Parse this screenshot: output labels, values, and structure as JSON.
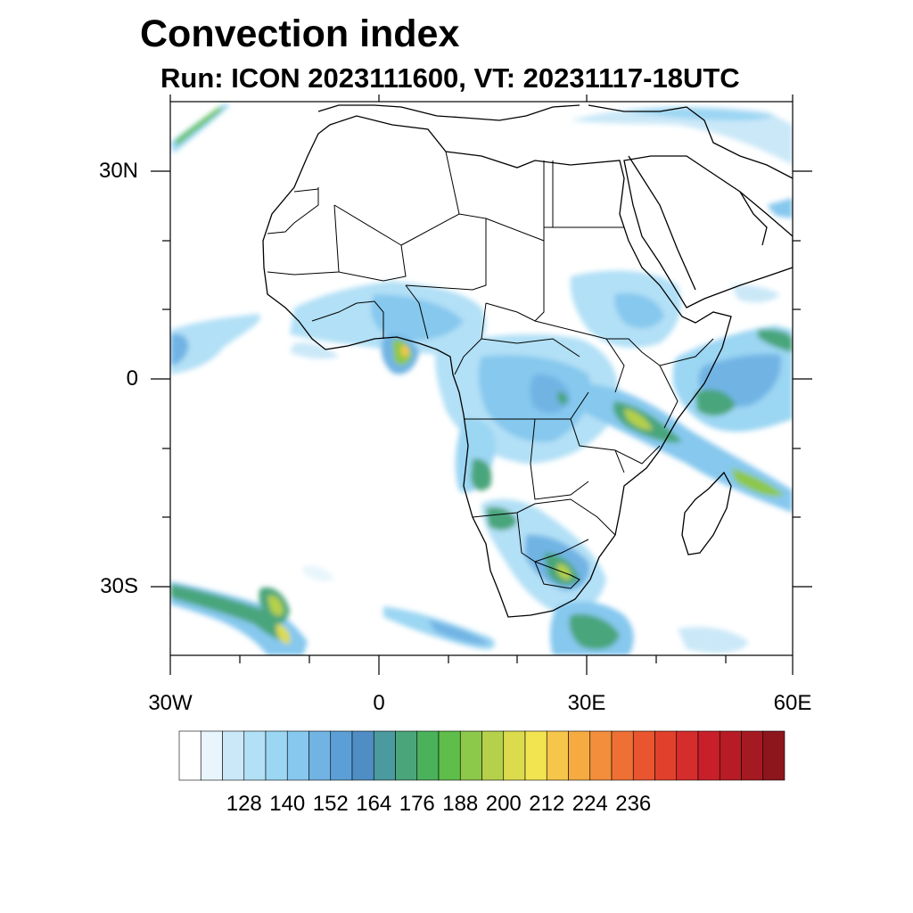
{
  "title": "Convection index",
  "subtitle": "Run: ICON 2023111600,  VT: 20231117-18UTC",
  "map": {
    "lat_labels": [
      "30N",
      "0",
      "30S"
    ],
    "lon_labels": [
      "30W",
      "0",
      "30E",
      "60E"
    ],
    "extent": {
      "lon": [
        -30,
        60
      ],
      "lat": [
        -40,
        40
      ]
    }
  },
  "colorbar": {
    "labels": [
      "128",
      "140",
      "152",
      "164",
      "176",
      "188",
      "200",
      "212",
      "224",
      "236"
    ],
    "colors": [
      "#ffffff",
      "#e8f5fc",
      "#cbe8f8",
      "#b2e0f6",
      "#9bd6f3",
      "#86c8ee",
      "#71b4e4",
      "#5c9fd6",
      "#4f8ec4",
      "#4b9aa0",
      "#4aa57b",
      "#49b25a",
      "#5fbe4a",
      "#8cc84a",
      "#b5d04a",
      "#dcdb4e",
      "#f2e450",
      "#f6c64a",
      "#f6aa42",
      "#f28e3c",
      "#ee7034",
      "#e9552e",
      "#e0402c",
      "#d52c2c",
      "#c8202a",
      "#b71c26",
      "#a51a22",
      "#8c161c"
    ]
  }
}
